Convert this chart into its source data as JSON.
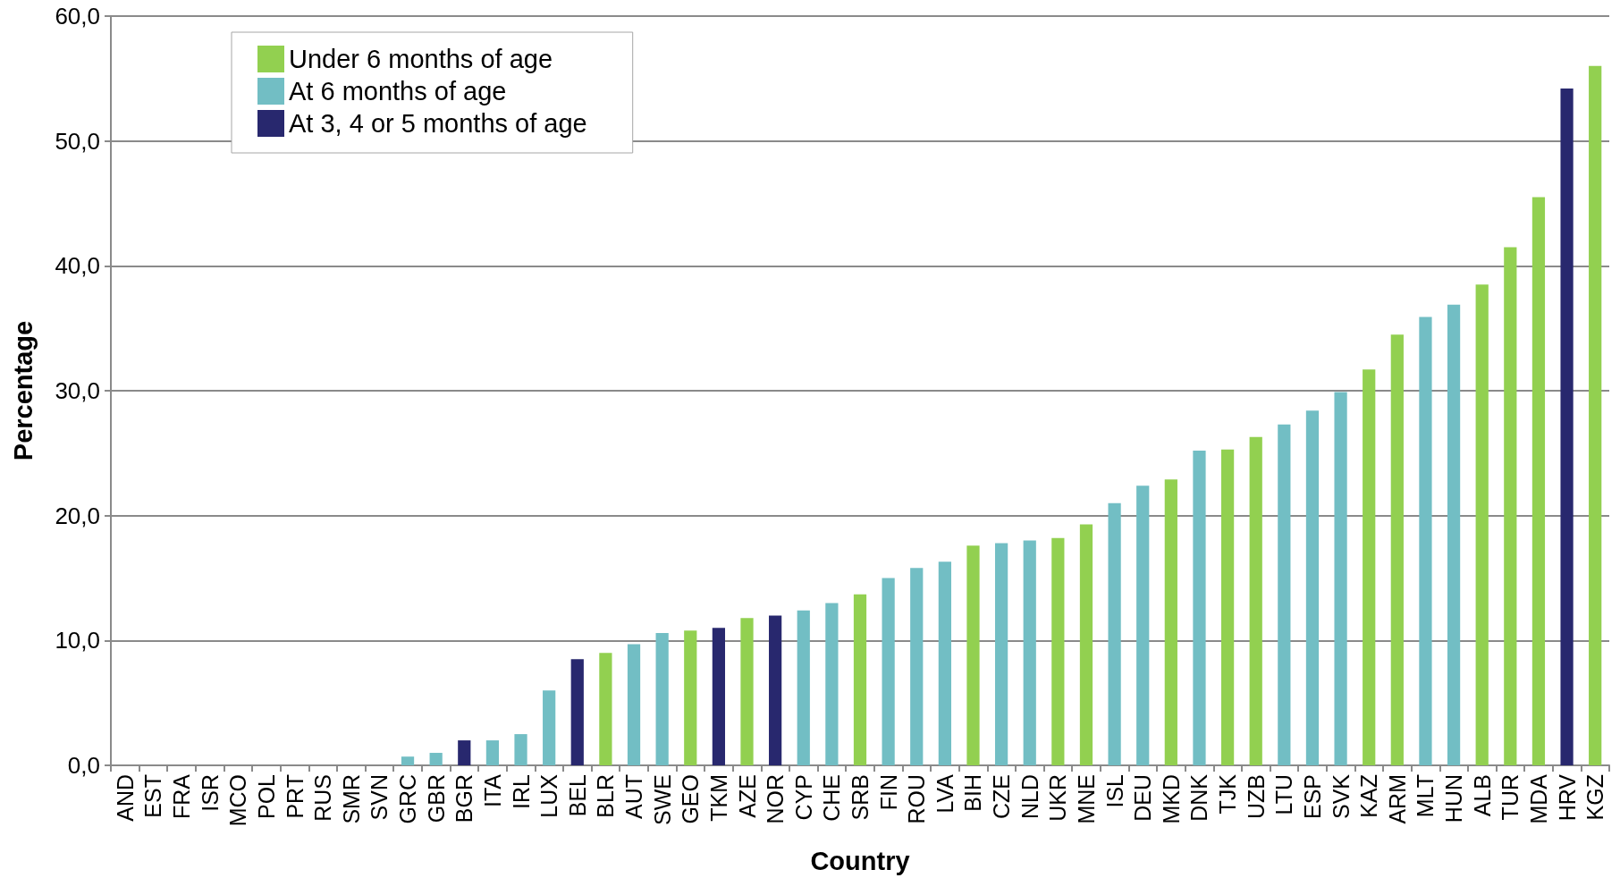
{
  "chart_data": {
    "type": "bar",
    "xlabel": "Country",
    "ylabel": "Percentage",
    "categories": [
      "AND",
      "EST",
      "FRA",
      "ISR",
      "MCO",
      "POL",
      "PRT",
      "RUS",
      "SMR",
      "SVN",
      "GRC",
      "GBR",
      "BGR",
      "ITA",
      "IRL",
      "LUX",
      "BEL",
      "BLR",
      "AUT",
      "SWE",
      "GEO",
      "TKM",
      "AZE",
      "NOR",
      "CYP",
      "CHE",
      "SRB",
      "FIN",
      "ROU",
      "LVA",
      "BIH",
      "CZE",
      "NLD",
      "UKR",
      "MNE",
      "ISL",
      "DEU",
      "MKD",
      "DNK",
      "TJK",
      "UZB",
      "LTU",
      "ESP",
      "SVK",
      "KAZ",
      "ARM",
      "MLT",
      "HUN",
      "ALB",
      "TUR",
      "MDA",
      "HRV",
      "KGZ"
    ],
    "series": [
      {
        "name": "Under 6 months of age",
        "color": "#92d050",
        "values": [
          null,
          null,
          null,
          null,
          null,
          null,
          null,
          null,
          null,
          null,
          null,
          null,
          null,
          null,
          null,
          null,
          null,
          9.0,
          null,
          null,
          10.8,
          null,
          11.8,
          null,
          null,
          null,
          13.7,
          null,
          null,
          null,
          17.6,
          null,
          null,
          18.2,
          19.3,
          null,
          null,
          22.9,
          null,
          25.3,
          26.3,
          null,
          null,
          null,
          31.7,
          34.5,
          null,
          null,
          38.5,
          41.5,
          45.5,
          null,
          56.0
        ]
      },
      {
        "name": "At 6 months of age",
        "color": "#72bec4",
        "values": [
          null,
          null,
          null,
          null,
          null,
          null,
          null,
          null,
          null,
          null,
          0.7,
          1.0,
          null,
          2.0,
          2.5,
          6.0,
          null,
          null,
          9.7,
          10.6,
          null,
          null,
          null,
          null,
          12.4,
          13.0,
          null,
          15.0,
          15.8,
          16.3,
          null,
          17.8,
          18.0,
          null,
          null,
          21.0,
          22.4,
          null,
          25.2,
          null,
          null,
          27.3,
          28.4,
          29.9,
          null,
          null,
          35.9,
          36.9,
          null,
          null,
          null,
          null,
          null
        ]
      },
      {
        "name": "At 3, 4 or 5 months of age",
        "color": "#28286e",
        "values": [
          null,
          null,
          null,
          null,
          null,
          null,
          null,
          null,
          null,
          null,
          null,
          null,
          2.0,
          null,
          null,
          null,
          8.5,
          null,
          null,
          null,
          null,
          11.0,
          null,
          12.0,
          null,
          null,
          null,
          null,
          null,
          null,
          null,
          null,
          null,
          null,
          null,
          null,
          null,
          null,
          null,
          null,
          null,
          null,
          null,
          null,
          null,
          null,
          null,
          null,
          null,
          null,
          null,
          54.2,
          null
        ]
      }
    ],
    "ylim": [
      0,
      60
    ],
    "yticks": [
      {
        "value": 0,
        "label": "0,0"
      },
      {
        "value": 10,
        "label": "10,0"
      },
      {
        "value": 20,
        "label": "20,0"
      },
      {
        "value": 30,
        "label": "30,0"
      },
      {
        "value": 40,
        "label": "40,0"
      },
      {
        "value": 50,
        "label": "50,0"
      },
      {
        "value": 60,
        "label": "60,0"
      }
    ],
    "grid": "y",
    "legend": "top left"
  }
}
